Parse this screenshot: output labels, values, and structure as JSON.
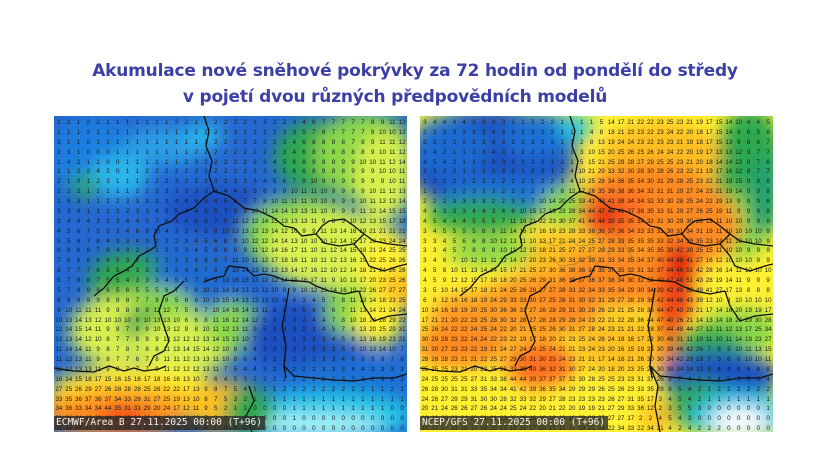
{
  "title": {
    "line1": "Akumulace nové sněhové pokrývky za 72 hodin od pondělí do středy",
    "line2": "v pojetí dvou různých předpovědních modelů"
  },
  "colors": {
    "title": "#3b3fa6",
    "scale": [
      "#ffffff",
      "#a8f4f8",
      "#23c7e8",
      "#1f6fd4",
      "#1b4fbf",
      "#2fa84f",
      "#8bd84a",
      "#d8f050",
      "#fff030",
      "#ffc020",
      "#ff8a20",
      "#f04a18",
      "#e01010"
    ]
  },
  "maps": [
    {
      "id": "ecmwf",
      "label": "ECMWF/Area B 27.11.2025 00:00 (T+96)",
      "model": "ECMWF",
      "area": "Area B",
      "run": "27.11.2025 00:00",
      "lead": "T+96",
      "rows": [
        "1 1 1 2 2 1 1 1 1 1 1 1 2 2 1 1 2 2 2 2 1 2 2 2 3 4 6 7 7 7 7 7 8 9 11 12",
        "1 1 1 2 1 1 1 1 1 1 1 1 1 2 2 2 2 3 3 2 1 1 2 2 3 5 7 8 7 7 7 7 8 10 10 12",
        "3 1 1 0 1 1 1 1 1 1 1 1 1 1 1 1 2 2 2 2 1 2 2 3 4 6 8 8 8 8 7 8 9 11 11 12",
        "2 3 1 0 0 0 1 1 1 1 1 1 1 1 2 2 2 2 2 2 2 2 2 3 4 6 8 9 8 8 8 8 9 10 11 12",
        "1 4 2 1 1 0 0 1 1 1 1 1 1 2 3 2 2 2 2 2 2 3 4 5 6 8 9 8 8 9 9 10 10 11 12 14",
        "1 1 2 2 4 2 0 1 1 2 2 2 2 2 3 2 2 2 2 2 3 3 4 5 6 6 8 9 8 8 9 9 9 10 10 11",
        "2 1 0 1 2 3 1 1 1 2 2 2 3 2 2 3 3 2 3 3 3 4 5 6 7 8 10 9 9 9 9 9 9 9 10 11",
        "2 2 2 1 1 1 1 1 2 2 3 3 3 3 3 3 3 4 4 5 5 6 8 9 10 11 11 10 9 9 9 9 10 11 12 13",
        "1 6 3 1 1 2 2 3 3 3 3 3 4 4 4 3 4 5 6 7 7 8 10 11 11 11 10 10 9 9 9 10 11 13 13 14",
        "3 3 4 1 1 1 2 2 3 3 4 5 5 4 4 5 5 7 9 9 10 11 14 14 13 13 11 10 9 9 9 11 12 14 15 15",
        "3 4 4 4 3 2 3 4 4 5 7 6 3 4 6 6 7 9 11 12 12 14 15 13 13 13 11 9 8 9 10 12 13 15 17 18",
        "4 5 6 7 5 3 3 4 6 9 10 4 3 2 4 5 8 10 13 13 12 13 14 12 10 9 9 11 13 14 16 19 21 21 21 21",
        "5 5 6 7 6 4 3 3 4 3 2 2 2 3 4 5 6 8 9 10 12 12 14 14 13 10 10 10 12 14 15 17 20 23 24 24",
        "6 6 6 6 7 6 4 3 2 2 1 2 2 3 4 5 6 8 9 9 11 12 14 16 17 11 10 11 12 14 15 18 21 24 25 25",
        "7 6 6 6 6 6 5 3 2 2 2 2 2 3 4 6 6 7 11 10 11 12 17 18 16 11 10 11 12 13 16 19 22 25 26 26",
        "8 7 7 7 6 5 5 4 3 3 3 3 3 4 4 7 8 7 10 14 13 12 12 13 14 17 16 12 10 12 14 18 21 24 26 28",
        "6 7 8 8 7 5 5 4 3 3 3 4 5 6 7 8 9 13 16 15 13 12 12 14 15 16 17 11 9 10 13 17 20 23 25 26",
        "5 7 8 9 8 6 5 6 5 5 5 6 7 7 8 10 11 14 14 13 13 13 10 8 9 10 12 13 14 16 19 22 26 27 27 27",
        "6 8 9 9 9 8 8 8 7 7 9 8 5 6 8 10 13 15 14 13 13 13 10 8 4 3 4 5 7 8 11 13 14 18 23 25",
        "9 10 11 11 11 9 9 8 8 9 12 12 7 5 6 7 10 14 16 14 13 11 8 4 4 5 4 5 6 7 11 13 14 21 24 24",
        "10 13 14 13 12 10 10 10 9 10 13 13 10 6 6 8 11 16 12 14 12 5 3 3 3 2 4 4 7 8 10 18 24 28 29 22",
        "12 14 15 14 11 9 8 7 8 9 10 13 12 9 8 10 11 12 13 11 9 5 3 3 3 2 3 4 5 7 8 13 20 25 29 31",
        "12 13 14 12 10 8 7 7 8 9 9 12 12 12 12 13 14 15 13 10 7 4 3 3 3 3 3 3 4 5 8 13 16 19 23 21",
        "11 14 14 11 9 8 7 8 7 8 8 11 13 14 15 14 12 10 8 6 4 3 3 3 3 2 3 3 3 5 9 10 13 14 10 7",
        "11 12 13 11 9 8 7 7 6 7 8 11 11 12 13 13 11 10 8 6 4 3 2 2 2 2 2 3 3 4 6 8 9 8 7 6",
        "11 12 13 13 11 9 8 7 7 7 9 11 12 12 12 13 11 7 5 4 4 3 2 2 2 2 2 3 3 3 4 4 3 3 3 3",
        "16 14 15 18 17 15 16 15 16 17 18 16 16 13 10 7 6 4 5 3 2 2 2 2 2 2 2 2 2 3 3 3 2 3 2 2",
        "27 25 26 29 27 26 28 28 28 25 26 22 22 17 13 9 8 7 5 4 1 1 1 2 2 2 2 2 2 2 2 2 1 1 2 1",
        "33 35 36 37 36 37 34 33 28 31 27 25 19 13 10 8 7 5 3 2 1 1 1 1 1 1 1 1 1 1 1 1 1 1 1 1",
        "34 36 33 34 34 44 35 31 31 29 20 24 17 12 11 9 5 2 1 1 0 0 0 0 1 1 1 1 1 1 1 1 1 1 0 0",
        "31 36 34 42 39 44 38 39 33 29 24 19 14 11 10 7 2 1 1 0 0 0 0 0 1 0 0 0 0 0 0 0 0 0 0 0",
        "31 38 35 33 31 31 32 33 32 31 28 16 14 11 9 6 1 0 0 0 0 0 0 0 0 0 0 0 0 0 0 0 0 0 0 0"
      ]
    },
    {
      "id": "gfs",
      "label": "NCEP/GFS 27.11.2025 00:00 (T+96)",
      "model": "NCEP/GFS",
      "run": "27.11.2025 00:00",
      "lead": "T+96",
      "rows": [
        "3 4 4 4 4 3 3 3 3 2 1 3 2 2 1 1 1 1 5 14 17 21 22 22 23 25 23 21 19 17 15 14 10 4 4 5",
        "2 2 3 3 3 3 3 4 3 3 2 3 2 2 1 1 1 4 8 18 21 23 23 22 23 24 22 20 18 17 15 14 9 6 5 6",
        "2 2 2 2 2 3 3 4 3 2 2 3 2 2 1 1 2 8 13 19 24 24 23 22 23 23 21 19 18 17 15 13 9 8 6 7",
        "3 4 2 1 1 2 3 4 3 2 2 2 2 1 1 1 3 10 15 20 25 26 25 26 24 24 22 20 19 17 13 13 12 9 7 7",
        "4 5 4 2 1 1 2 3 3 2 1 2 2 1 2 1 5 15 21 25 28 28 27 29 25 25 23 21 20 18 14 14 13 9 7 6",
        "2 3 3 2 1 1 2 2 3 2 1 2 2 1 2 4 10 21 29 33 32 30 28 30 28 26 23 22 21 19 17 16 12 8 7 7",
        "1 2 2 2 2 2 2 2 2 2 2 1 2 2 3 4 10 25 28 34 36 35 34 30 31 29 28 25 23 22 21 19 15 9 8 8",
        "1 1 2 2 2 3 3 3 2 2 2 2 3 5 8 12 17 26 35 39 38 36 34 32 31 31 29 27 24 23 21 19 14 9 9 8",
        "2 2 2 3 3 3 3 2 2 3 5 7 10 14 20 25 33 41 43 41 38 34 34 32 33 30 28 25 24 22 19 13 9 9 9 8",
        "4 4 3 3 3 4 4 3 4 6 10 15 17 19 23 28 34 44 47 46 41 37 36 35 33 31 29 27 26 25 19 11 9 9 9 8",
        "4 5 4 4 4 5 5 5 7 11 16 21 22 23 30 37 41 44 44 39 35 35 34 32 31 30 29 30 28 18 11 10 10 9 9 8",
        "3 4 5 5 5 5 6 9 11 14 16 17 16 19 23 28 33 36 36 37 36 34 33 33 31 30 31 34 31 19 11 10 10 10 10 9",
        "3 3 4 5 6 6 8 10 12 13 11 10 13 17 21 24 24 25 27 28 33 35 35 35 33 32 34 39 35 23 14 11 10 10 10 9",
        "3 3 4 5 7 8 9 8 10 11 12 15 18 21 25 27 27 27 28 29 33 35 34 35 35 39 42 39 25 15 11 10 10 9 9 9",
        "3 4 6 7 10 12 11 11 12 14 17 20 23 26 30 33 32 30 31 33 34 35 34 37 40 44 46 41 27 16 12 10 10 10 9 9",
        "4 5 8 10 11 13 14 14 15 17 21 25 27 30 36 38 36 34 35 37 35 32 31 32 37 44 46 51 42 28 16 14 11 10 10 10",
        "4 5 9 12 12 15 17 18 18 20 25 26 29 31 36 38 37 36 37 38 34 30 32 35 40 47 48 51 43 28 19 14 11 9 9 9",
        "3 5 10 14 15 17 18 21 24 25 26 28 27 27 28 33 32 34 33 35 34 29 30 34 39 42 49 52 49 41 27 17 13 8 8 8",
        "6 8 12 16 16 18 19 24 29 33 33 30 27 25 28 31 30 32 31 29 27 28 29 36 42 44 46 43 39 12 10 8 10 10 10 10",
        "10 14 16 18 19 20 25 30 36 36 31 27 26 28 29 31 30 28 26 23 21 25 28 36 44 47 40 29 21 17 14 16 20 19 19 17",
        "17 21 21 20 22 23 25 28 30 32 28 27 28 28 29 28 24 23 22 21 22 28 36 44 47 40 26 21 14 13 14 18 24 29 30 28",
        "25 26 24 22 22 24 25 24 22 20 21 25 25 26 30 31 27 28 24 23 21 21 22 28 37 44 48 44 27 12 11 12 13 17 25 34",
        "30 29 28 23 22 24 24 22 23 22 19 17 18 20 21 23 25 24 28 24 18 16 17 22 30 46 31 11 10 11 10 11 14 19 23 27",
        "31 30 27 23 23 22 19 21 24 27 24 24 25 24 21 21 23 24 23 20 16 15 19 25 30 39 46 42 26 7 8 9 10 11 13 15",
        "28 28 28 23 21 21 22 25 27 29 30 31 30 25 24 23 21 21 17 14 16 21 26 30 30 34 42 29 19 7 5 6 8 10 10 11",
        "25 25 25 23 21 20 22 25 28 33 39 40 36 32 31 30 27 24 20 18 20 23 25 29 30 38 34 14 12 8 4 4 6 6 8 8",
        "24 25 25 25 25 27 31 33 38 44 44 39 37 37 37 32 30 28 25 25 23 23 31 37 26 8 7 4 2 3 4 5 5 5 5 4",
        "26 28 30 31 31 33 35 34 34 41 42 39 36 35 34 29 29 29 26 25 26 23 33 35 28 8 5 4 2 1 2 2 2 2 2 2",
        "24 26 27 29 29 31 30 30 28 32 33 32 29 27 28 23 23 23 23 26 27 31 35 17 3 4 5 4 2 1 1 1 1 1 1 1",
        "20 21 24 26 26 27 26 24 24 25 24 22 20 21 22 20 19 19 21 27 29 33 36 12 2 3 5 5 3 0 0 0 0 0 0 1",
        "18 18 20 23 24 22 21 21 23 22 18 16 16 18 19 19 22 30 25 27 27 17 2 2 4 5 4 3 0 0 0 0 0 0 0 0",
        "18 17 17 18 18 17 16 15 15 16 18 17 15 15 15 17 19 21 21 22 34 33 22 34 21 4 2 4 2 2 2 0 0 0 0 0"
      ]
    }
  ]
}
